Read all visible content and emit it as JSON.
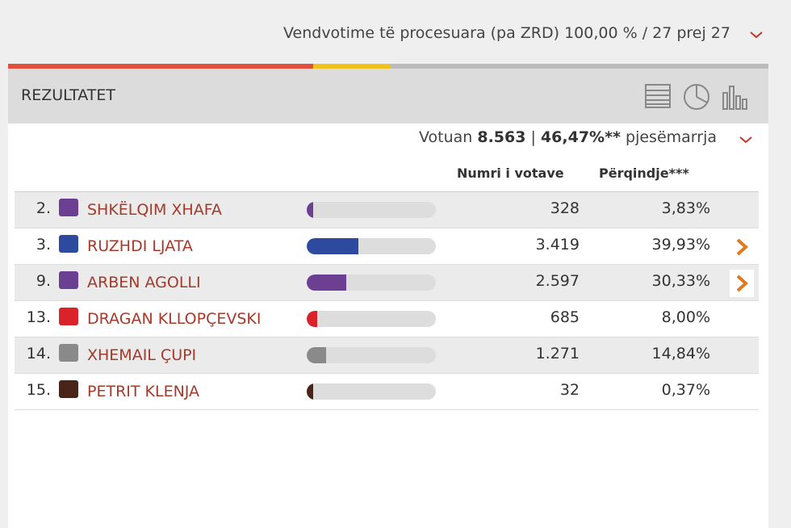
{
  "header": {
    "processed": "Vendvotime të procesuara (pa ZRD) 100,00 % / 27 prej 27"
  },
  "panel": {
    "title": "REZULTATET",
    "turnout": {
      "label": "Votuan",
      "voters": "8.563",
      "separator": "|",
      "percent": "46,47%**",
      "suffix": "pjesëmarrja"
    },
    "columns": {
      "votes": "Numri i votave",
      "percent": "Përqindje***"
    },
    "bar_range": [
      0,
      100
    ],
    "rows": [
      {
        "number": "2.",
        "name": "SHKËLQIM XHAFA",
        "votes": "328",
        "percent": {
          "value": 3.83,
          "label": "3,83%"
        },
        "color": "#6b3f92"
      },
      {
        "number": "3.",
        "name": "RUZHDI LJATA",
        "votes": "3.419",
        "percent": {
          "value": 39.93,
          "label": "39,93%"
        },
        "color": "#2e4a9e"
      },
      {
        "number": "9.",
        "name": "ARBEN AGOLLI",
        "votes": "2.597",
        "percent": {
          "value": 30.33,
          "label": "30,33%"
        },
        "color": "#6b3f92"
      },
      {
        "number": "13.",
        "name": "DRAGAN KLLOPÇEVSKI",
        "votes": "685",
        "percent": {
          "value": 8.0,
          "label": "8,00%"
        },
        "color": "#d9222a"
      },
      {
        "number": "14.",
        "name": "XHEMAIL ÇUPI",
        "votes": "1.271",
        "percent": {
          "value": 14.84,
          "label": "14,84%"
        },
        "color": "#8a8a8a"
      },
      {
        "number": "15.",
        "name": "PETRIT KLENJA",
        "votes": "32",
        "percent": {
          "value": 0.37,
          "label": "0,37%"
        },
        "color": "#4a2418"
      }
    ]
  }
}
